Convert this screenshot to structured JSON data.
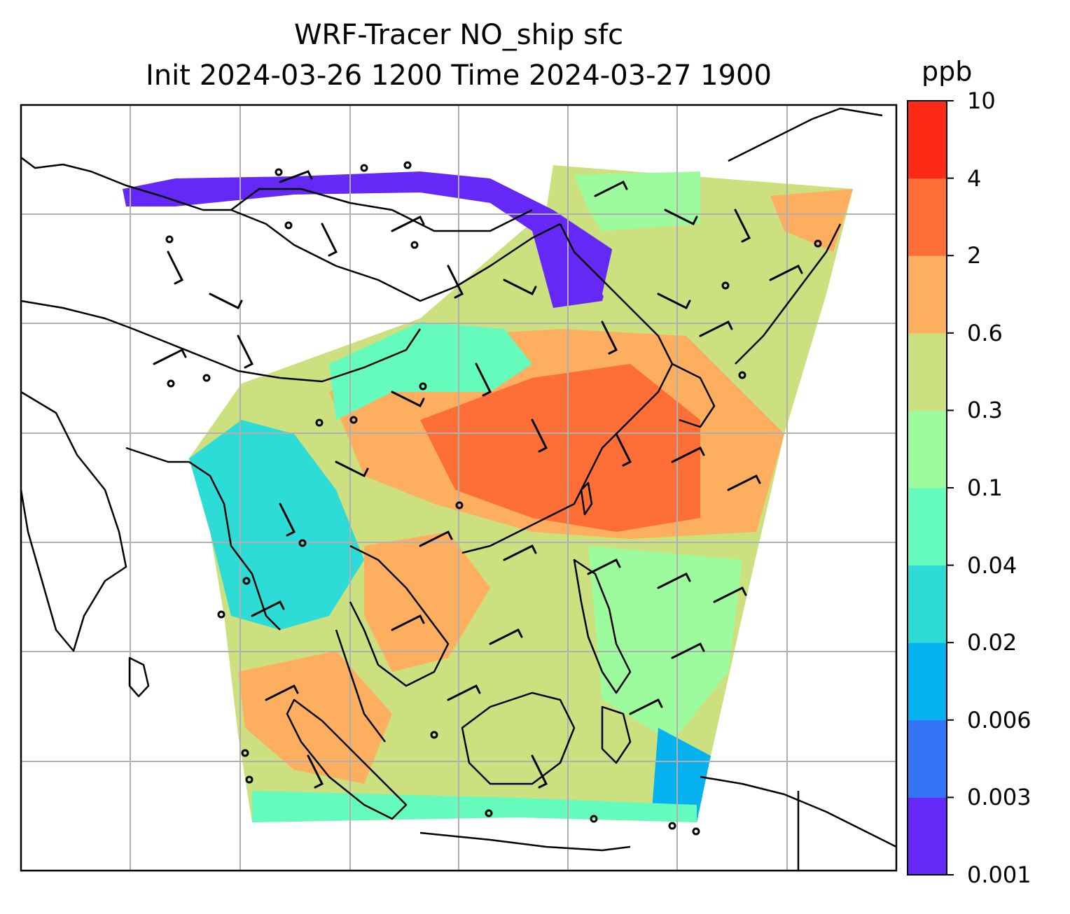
{
  "title": {
    "line1": "WRF-Tracer NO_ship sfc",
    "line2": "Init 2024-03-26 1200 Time 2024-03-27 1900"
  },
  "colorbar": {
    "unit": "ppb",
    "levels": [
      "0.001",
      "0.003",
      "0.006",
      "0.02",
      "0.04",
      "0.1",
      "0.3",
      "0.6",
      "2",
      "4",
      "10"
    ],
    "colors": [
      "#6528f7",
      "#3374f4",
      "#05b1ee",
      "#2ddcd6",
      "#64fbbd",
      "#9cfb9c",
      "#cde07f",
      "#fdae5f",
      "#fe6f37",
      "#ff2a15"
    ]
  },
  "map": {
    "coastline_color": "#000000",
    "gridline_color": "#b0b0b0",
    "wind_barb_color": "#000000",
    "no_data_color": "#ffffff"
  }
}
